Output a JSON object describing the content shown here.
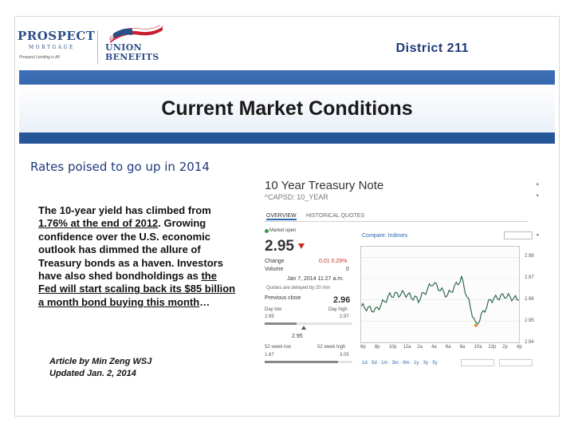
{
  "header": {
    "prospect_name": "PROSPECT",
    "prospect_sub": "MORTGAGE",
    "prospect_tagline": "Prospect Lending is All",
    "union_line1": "UNION",
    "union_line2": "BENEFITS",
    "district": "District 211"
  },
  "title": "Current Market Conditions",
  "subtitle": "Rates poised to go up in 2014",
  "body": {
    "p1": "The 10-year yield has climbed from ",
    "u1": "1.76% at the end of 2012",
    "p2": ". Growing confidence over the U.S. economic outlook has dimmed the allure of Treasury bonds as a haven. Investors have also shed bondholdings as ",
    "u2": "the Fed will start scaling back its $85 billion a month bond buying this month",
    "p3": "…"
  },
  "credit": {
    "line1": "Article by Min Zeng WSJ",
    "line2": "Updated Jan. 2, 2014"
  },
  "widget": {
    "title": "10 Year Treasury Note",
    "symbol": "^CAPSD: 10_YEAR",
    "tabs": [
      "OVERVIEW",
      "HISTORICAL QUOTES"
    ],
    "market": "Market open",
    "price": "2.95",
    "change_label": "Change",
    "volume_label": "Volume",
    "change_value": "0.01  0.29%",
    "volume_value": "0",
    "timestamp": "Jan 7, 2014 11:27 a.m.",
    "delay_note": "Quotes are delayed by 20 min",
    "prev_label": "Previous close",
    "prev_value": "2.96",
    "day_low_label": "Day low",
    "day_high_label": "Day high",
    "day_low": "2.95",
    "day_high": "2.97",
    "current_mark": "2.95",
    "wk52_low_label": "52 week low",
    "wk52_high_label": "52 week high",
    "wk52_low": "1.67",
    "wk52_high": "3.05",
    "compare_label": "Compare: Indexes",
    "y_ticks": [
      "2.98",
      "2.97",
      "2.96",
      "2.95",
      "2.94"
    ],
    "x_ticks": [
      "6p",
      "8p",
      "10p",
      "12a",
      "2a",
      "4a",
      "6a",
      "8a",
      "10a",
      "12p",
      "2p",
      "4p"
    ],
    "range_links": "1d · 5d · 1m · 3m · 6m · 1y · 3y · 5y"
  },
  "chart_data": {
    "type": "line",
    "title": "",
    "xlabel": "",
    "ylabel": "",
    "x": [
      "6p",
      "8p",
      "10p",
      "12a",
      "2a",
      "4a",
      "6a",
      "8a",
      "10a",
      "12p",
      "2p",
      "4p"
    ],
    "series": [
      {
        "values": [
          2.957,
          2.955,
          2.962,
          2.963,
          2.96,
          2.968,
          2.962,
          2.97,
          2.948,
          2.96,
          2.962,
          2.96
        ]
      }
    ],
    "ylim": [
      2.94,
      2.985
    ]
  }
}
